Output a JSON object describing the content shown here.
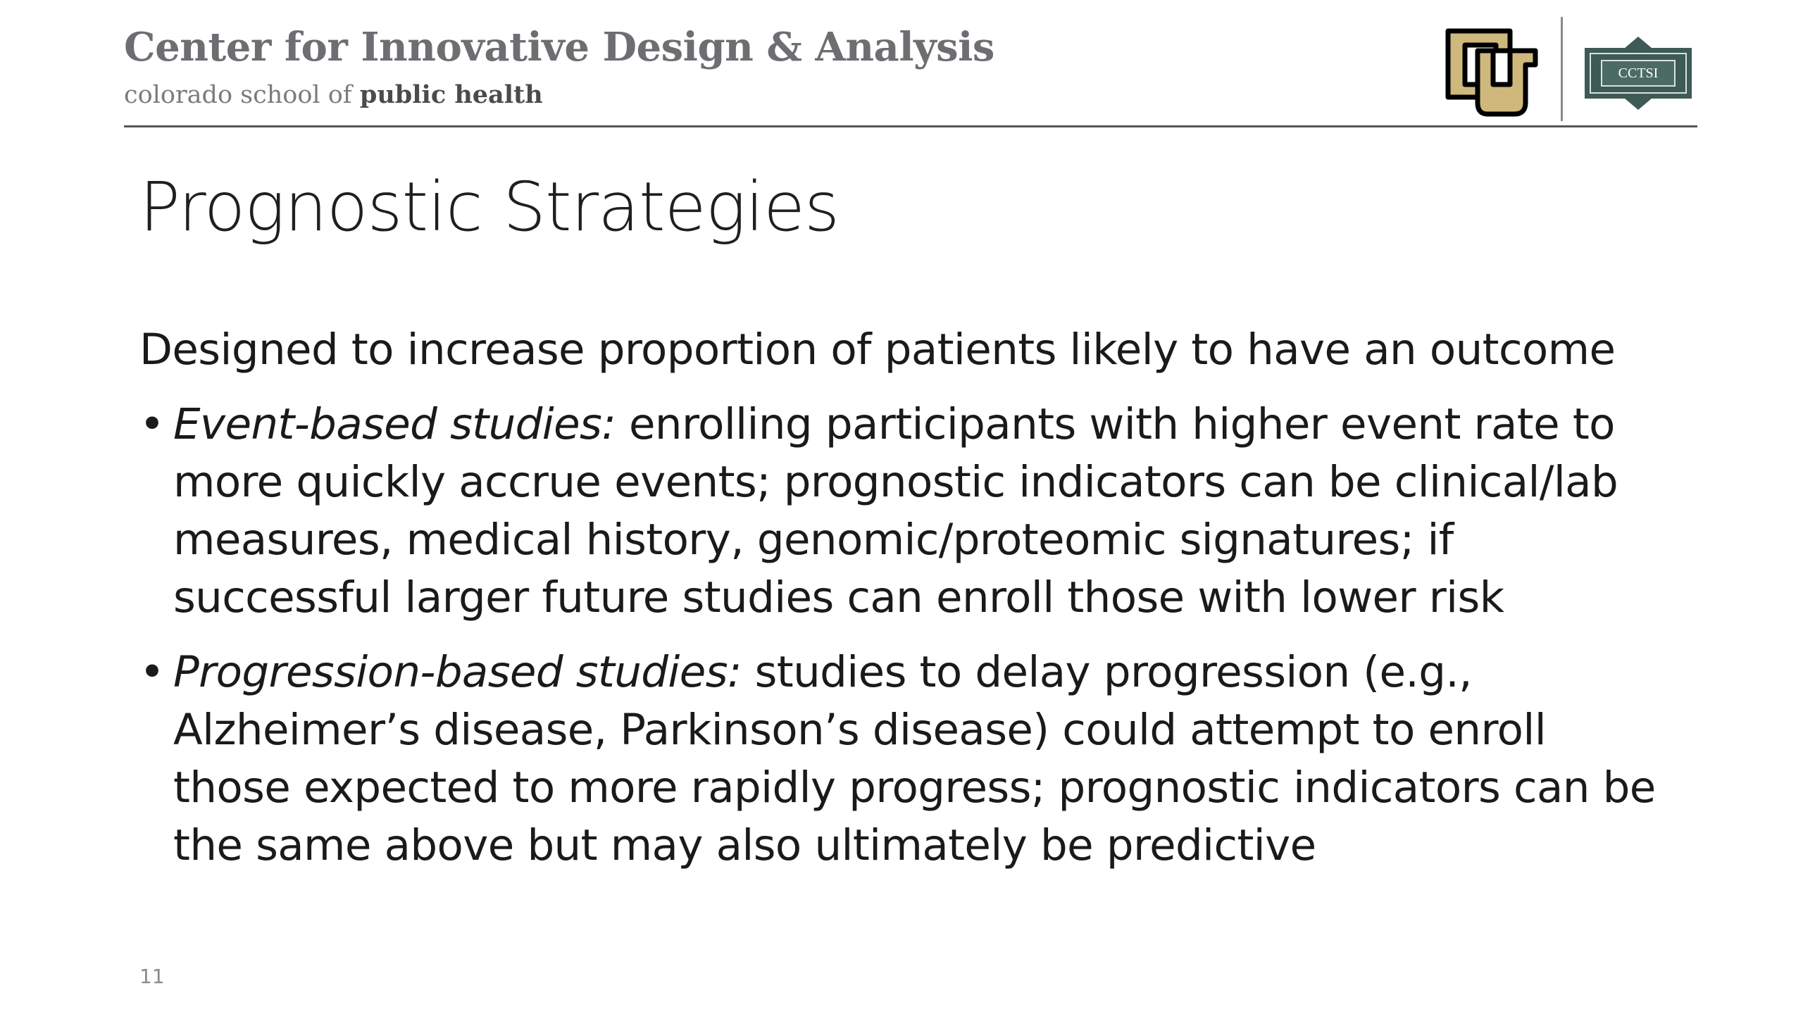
{
  "header": {
    "org_title": "Center for Innovative Design & Analysis",
    "org_subtitle_light": "colorado school of ",
    "org_subtitle_bold": "public health",
    "logos": [
      {
        "name": "cu-logo",
        "text": "CU"
      },
      {
        "name": "cctsi-logo",
        "text": "CCTSI"
      }
    ]
  },
  "slide": {
    "title": "Prognostic Strategies",
    "lead": "Designed to increase proportion of patients likely to have an outcome",
    "bullets": [
      {
        "marker": "•",
        "label": "Event-based studies:",
        "lines": [
          " enrolling participants with higher event rate to",
          "more quickly accrue events; prognostic indicators can be clinical/lab",
          "measures, medical history, genomic/proteomic signatures; if",
          "successful larger future studies can enroll those with lower risk"
        ]
      },
      {
        "marker": "•",
        "label": "Progression-based studies:",
        "lines": [
          " studies to delay progression (e.g.,",
          "Alzheimer’s disease, Parkinson’s disease) could attempt to enroll",
          "those expected to more rapidly progress; prognostic indicators can be",
          "the same above but may also ultimately be predictive"
        ]
      }
    ],
    "page_number": "11"
  }
}
